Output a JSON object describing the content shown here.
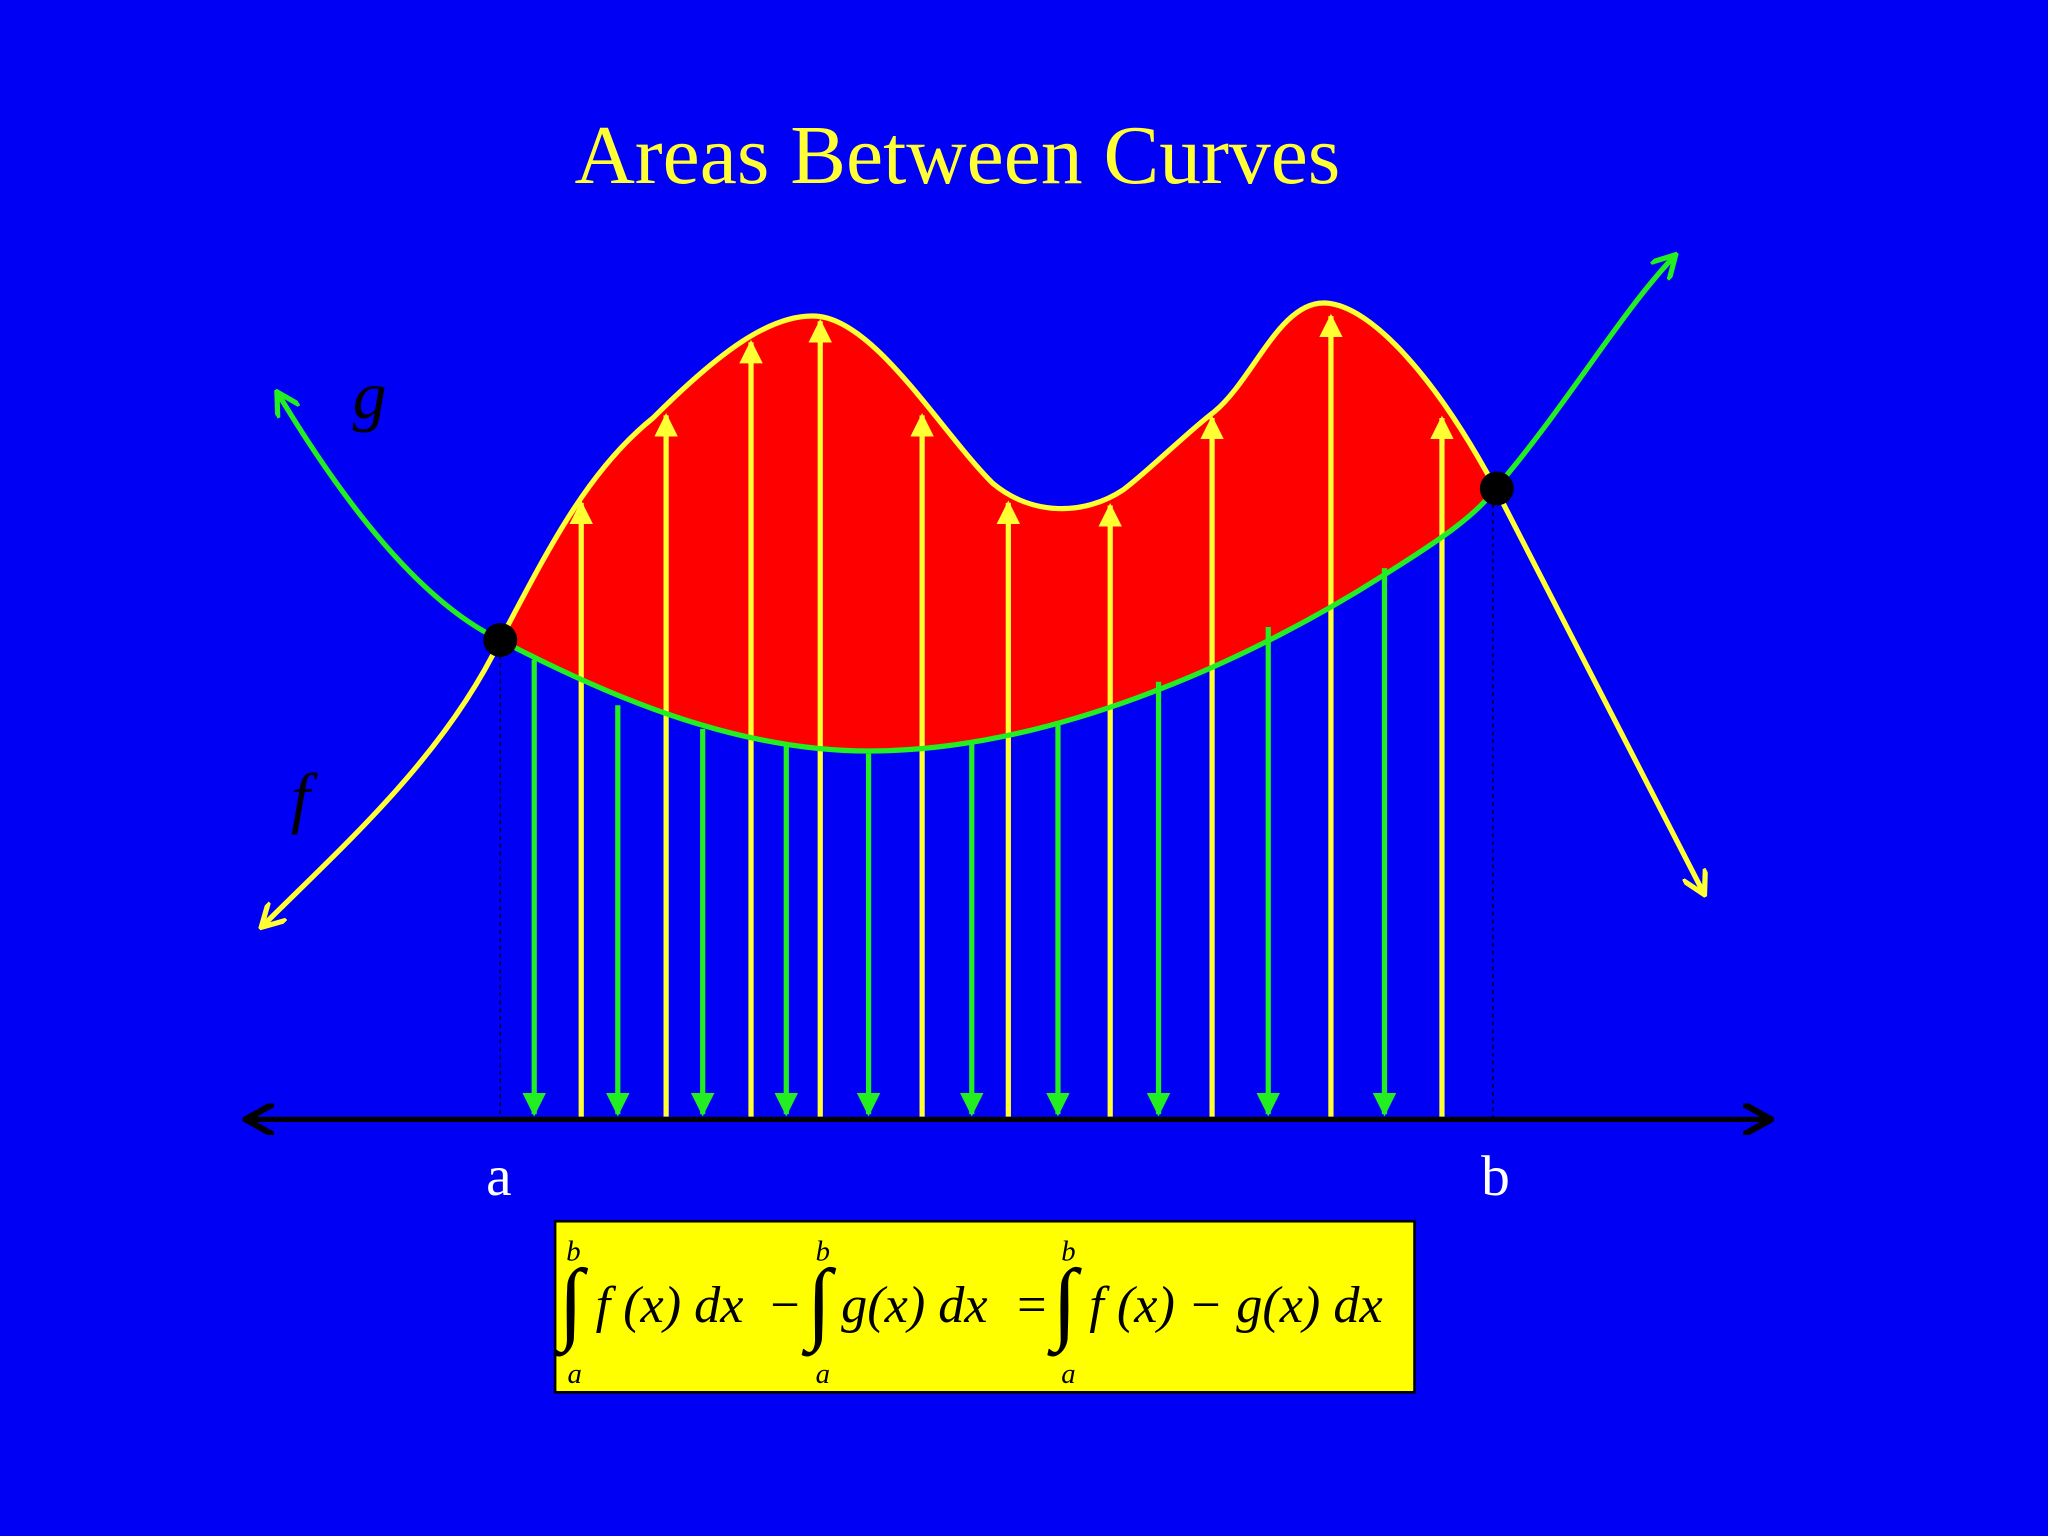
{
  "title": "Areas Between Curves",
  "curve_labels": {
    "g": "g",
    "f": "f"
  },
  "bounds": {
    "a": "a",
    "b": "b"
  },
  "formula": {
    "terms": [
      {
        "integral": "∫",
        "upper": "b",
        "lower": "a",
        "integrand": "f (x) dx"
      },
      {
        "integral": "∫",
        "upper": "b",
        "lower": "a",
        "integrand": "g(x) dx"
      },
      {
        "integral": "∫",
        "upper": "b",
        "lower": "a",
        "integrand": "f (x) − g(x) dx"
      }
    ],
    "operators": [
      "−",
      "="
    ]
  }
}
